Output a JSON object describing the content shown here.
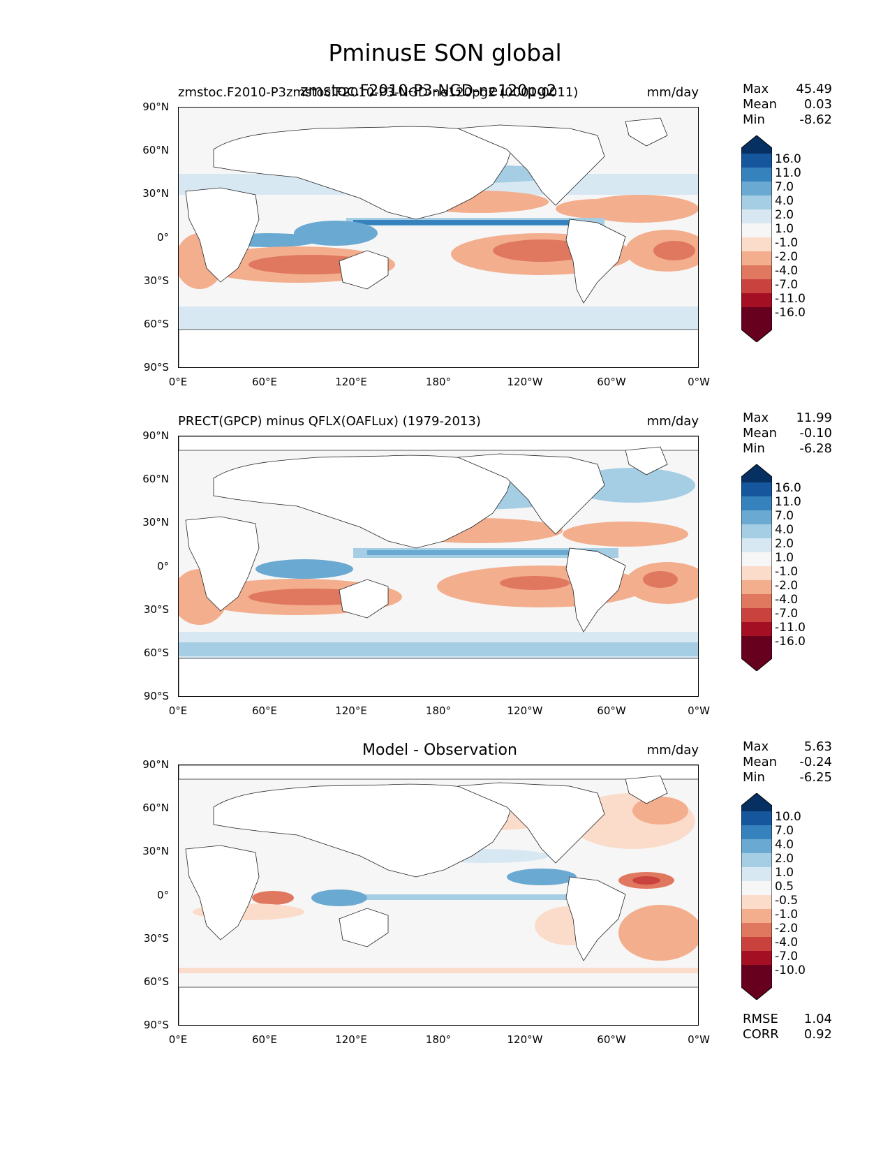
{
  "title": "PminusE SON global",
  "colors": {
    "ocean_bg": "#f6f6f6",
    "land": "#ffffff",
    "coast": "#222222",
    "levels": [
      "#67001f",
      "#a50f23",
      "#c9423e",
      "#e0785f",
      "#f3ae8e",
      "#fbdccb",
      "#f6f6f6",
      "#d7e8f3",
      "#a5cee4",
      "#6aa9d1",
      "#3682bc",
      "#16569c",
      "#053061"
    ]
  },
  "axes": {
    "y_ticks": [
      "90°N",
      "60°N",
      "30°N",
      "0°",
      "30°S",
      "60°S",
      "90°S"
    ],
    "x_ticks": [
      "0°E",
      "60°E",
      "120°E",
      "180°",
      "120°W",
      "60°W",
      "0°W"
    ]
  },
  "panels": [
    {
      "id": "model",
      "title_left": "zmstoc.F2010-P3zmstoc.F2010-P3-NGD-ne120pg2 (0001-0011)",
      "title_overlay": "zmstoc.F2010-P3-NGD-ne120pg2",
      "units": "mm/day",
      "stats": {
        "max_label": "Max",
        "max": "45.49",
        "mean_label": "Mean",
        "mean": "0.03",
        "min_label": "Min",
        "min": "-8.62"
      },
      "colorbar_labels": [
        "16.0",
        "11.0",
        "7.0",
        "4.0",
        "2.0",
        "1.0",
        "-1.0",
        "-2.0",
        "-4.0",
        "-7.0",
        "-11.0",
        "-16.0"
      ]
    },
    {
      "id": "obs",
      "title_left": "PRECT(GPCP) minus QFLX(OAFLux) (1979-2013)",
      "units": "mm/day",
      "stats": {
        "max_label": "Max",
        "max": "11.99",
        "mean_label": "Mean",
        "mean": "-0.10",
        "min_label": "Min",
        "min": "-6.28"
      },
      "colorbar_labels": [
        "16.0",
        "11.0",
        "7.0",
        "4.0",
        "2.0",
        "1.0",
        "-1.0",
        "-2.0",
        "-4.0",
        "-7.0",
        "-11.0",
        "-16.0"
      ]
    },
    {
      "id": "diff",
      "title_center": "Model - Observation",
      "units": "mm/day",
      "stats": {
        "max_label": "Max",
        "max": "5.63",
        "mean_label": "Mean",
        "mean": "-0.24",
        "min_label": "Min",
        "min": "-6.25"
      },
      "colorbar_labels": [
        "10.0",
        "7.0",
        "4.0",
        "2.0",
        "1.0",
        "0.5",
        "-0.5",
        "-1.0",
        "-2.0",
        "-4.0",
        "-7.0",
        "-10.0"
      ],
      "extra_stats": {
        "rmse_label": "RMSE",
        "rmse": "1.04",
        "corr_label": "CORR",
        "corr": "0.92"
      }
    }
  ]
}
